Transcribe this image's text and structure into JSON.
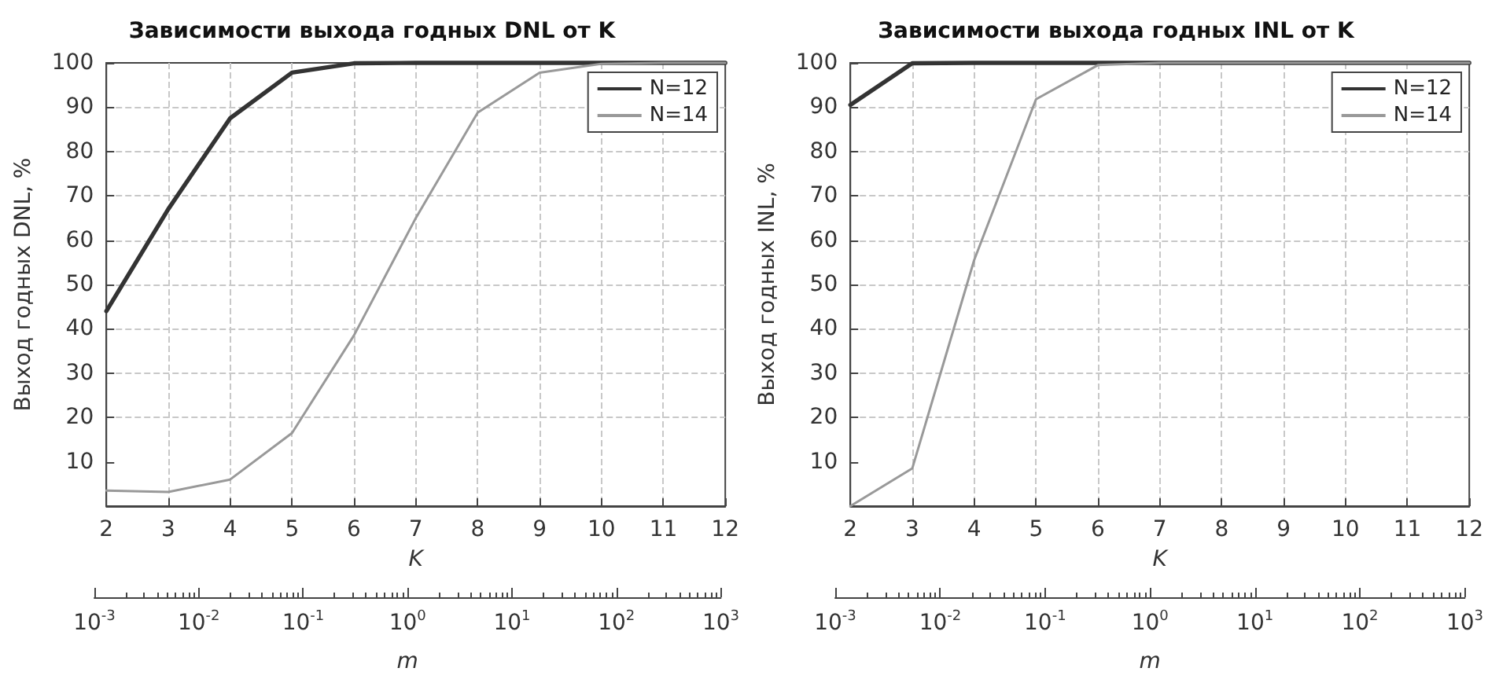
{
  "chart_data": [
    {
      "type": "line",
      "title": "Зависимости выхода годных DNL от K",
      "xlabel": "K",
      "ylabel": "Выход годных DNL, %",
      "x2label": "m",
      "x": [
        2,
        3,
        4,
        5,
        6,
        7,
        8,
        9,
        10,
        11,
        12
      ],
      "series": [
        {
          "name": "N=12",
          "color": "#333333",
          "values": [
            44,
            67,
            87.5,
            97.8,
            99.9,
            100,
            100,
            100,
            100,
            100,
            100
          ]
        },
        {
          "name": "N=14",
          "color": "#999999",
          "values": [
            3.5,
            3.2,
            6,
            16.5,
            38.5,
            65,
            88.8,
            97.8,
            99.8,
            100,
            100
          ]
        }
      ],
      "xlim": [
        2,
        12
      ],
      "xticks": [
        2,
        3,
        4,
        5,
        6,
        7,
        8,
        9,
        10,
        11,
        12
      ],
      "ylim": [
        0,
        100
      ],
      "yticks": [
        10,
        20,
        30,
        40,
        50,
        60,
        70,
        80,
        90,
        100
      ],
      "x2lim": [
        0.001,
        1000
      ],
      "x2ticks": [
        {
          "value": 0.001,
          "label": "10$^{-3}$"
        },
        {
          "value": 0.01,
          "label": "10$^{-2}$"
        },
        {
          "value": 0.1,
          "label": "10$^{-1}$"
        },
        {
          "value": 1,
          "label": "10$^{0}$"
        },
        {
          "value": 10,
          "label": "10$^{1}$"
        },
        {
          "value": 100,
          "label": "10$^{2}$"
        },
        {
          "value": 1000,
          "label": "10$^{3}$"
        }
      ],
      "log": "x2",
      "grid": true,
      "legend": "top right",
      "marker": "none",
      "line_style": "solid"
    },
    {
      "type": "line",
      "title": "Зависимости выхода годных INL от K",
      "xlabel": "K",
      "ylabel": "Выход годных INL, %",
      "x2label": "m",
      "x": [
        2,
        3,
        4,
        5,
        6,
        7,
        8,
        9,
        10,
        11,
        12
      ],
      "series": [
        {
          "name": "N=12",
          "color": "#333333",
          "values": [
            90.5,
            99.9,
            100,
            100,
            100,
            100,
            100,
            100,
            100,
            100,
            100
          ]
        },
        {
          "name": "N=14",
          "color": "#999999",
          "values": [
            0,
            8.5,
            55.5,
            91.8,
            99.5,
            100,
            100,
            100,
            100,
            100,
            100
          ]
        }
      ],
      "xlim": [
        2,
        12
      ],
      "xticks": [
        2,
        3,
        4,
        5,
        6,
        7,
        8,
        9,
        10,
        11,
        12
      ],
      "ylim": [
        0,
        100
      ],
      "yticks": [
        10,
        20,
        30,
        40,
        50,
        60,
        70,
        80,
        90,
        100
      ],
      "x2lim": [
        0.001,
        1000
      ],
      "x2ticks": [
        {
          "value": 0.001,
          "label": "10$^{-3}$"
        },
        {
          "value": 0.01,
          "label": "10$^{-2}$"
        },
        {
          "value": 0.1,
          "label": "10$^{-1}$"
        },
        {
          "value": 1,
          "label": "10$^{0}$"
        },
        {
          "value": 10,
          "label": "10$^{1}$"
        },
        {
          "value": 100,
          "label": "10$^{2}$"
        },
        {
          "value": 1000,
          "label": "10$^{3}$"
        }
      ],
      "log": "x2",
      "grid": true,
      "legend": "top right",
      "marker": "none",
      "line_style": "solid"
    }
  ]
}
